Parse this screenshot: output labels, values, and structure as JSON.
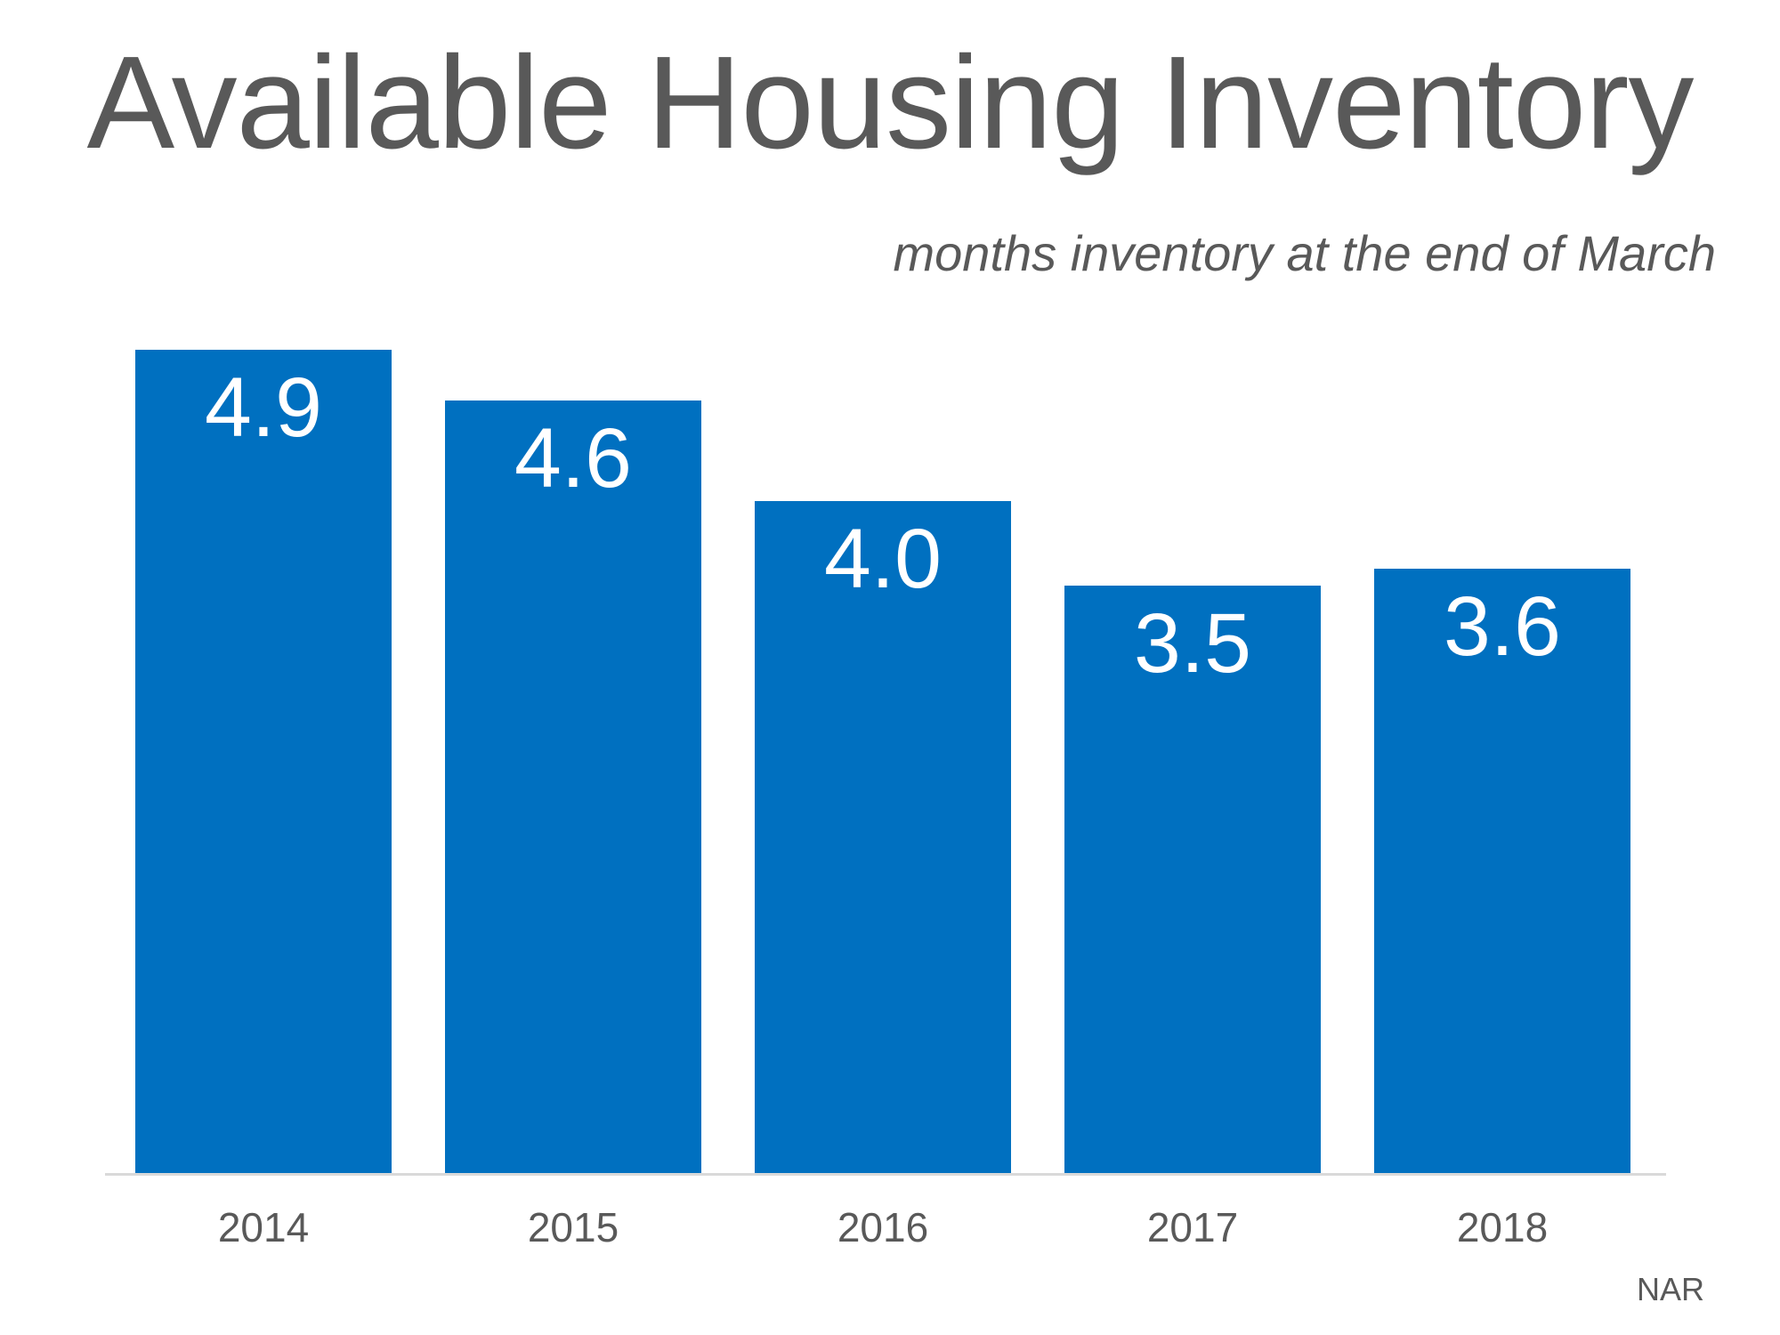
{
  "header": {
    "title": "Available Housing Inventory",
    "subtitle": "months inventory at the end of March"
  },
  "source": "NAR",
  "colors": {
    "bar": "#0070C0",
    "text_gray": "#595959",
    "axis_line": "#d9d9d9",
    "value_label": "#ffffff",
    "background": "#ffffff"
  },
  "chart_data": {
    "type": "bar",
    "title": "Available Housing Inventory",
    "subtitle": "months inventory at the end of March",
    "categories": [
      "2014",
      "2015",
      "2016",
      "2017",
      "2018"
    ],
    "values": [
      4.9,
      4.6,
      4.0,
      3.5,
      3.6
    ],
    "value_labels": [
      "4.9",
      "4.6",
      "4.0",
      "3.5",
      "3.6"
    ],
    "xlabel": "",
    "ylabel": "",
    "ylim": [
      0,
      5.2
    ],
    "grid": false,
    "legend": false,
    "bar_color": "#0070C0",
    "value_label_position": "inside-top",
    "source": "NAR"
  }
}
